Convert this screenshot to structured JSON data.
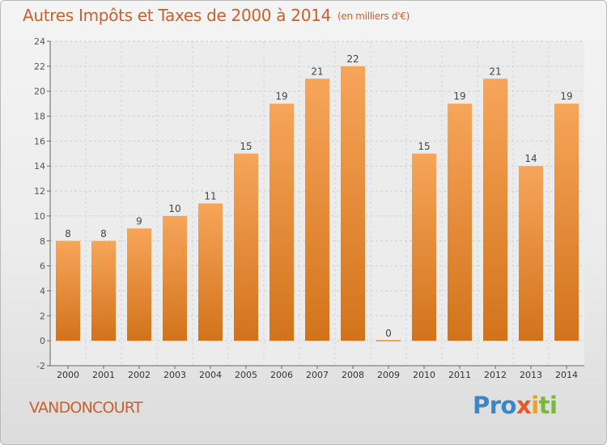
{
  "title": "Autres Impôts et Taxes de 2000 à 2014",
  "unit_label": "(en milliers d'€)",
  "commune": "VANDONCOURT",
  "logo": {
    "p1": "Pro",
    "p2": "x",
    "p3": "i",
    "p4": "ti"
  },
  "colors": {
    "bar_top": "#f7a55a",
    "bar_bottom": "#d2731b",
    "title": "#c8612e",
    "zero_line": "#f0a050"
  },
  "chart_data": {
    "type": "bar",
    "categories": [
      "2000",
      "2001",
      "2002",
      "2003",
      "2004",
      "2005",
      "2006",
      "2007",
      "2008",
      "2009",
      "2010",
      "2011",
      "2012",
      "2013",
      "2014"
    ],
    "values": [
      8,
      8,
      9,
      10,
      11,
      15,
      19,
      21,
      22,
      0,
      15,
      19,
      21,
      14,
      19
    ],
    "ylim": [
      -2,
      24
    ],
    "yticks": [
      -2,
      0,
      2,
      4,
      6,
      8,
      10,
      12,
      14,
      16,
      18,
      20,
      22,
      24
    ],
    "grid": true,
    "title": "Autres Impôts et Taxes de 2000 à 2014",
    "xlabel": "",
    "ylabel": ""
  }
}
